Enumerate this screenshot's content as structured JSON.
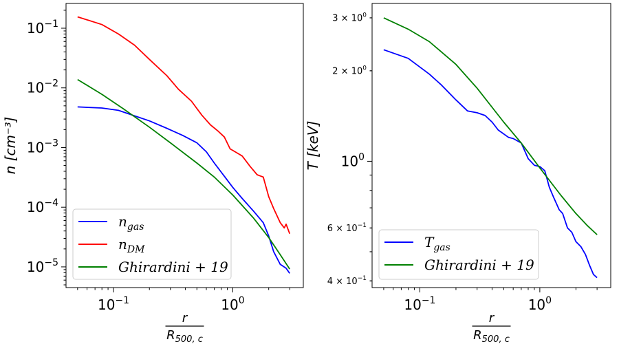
{
  "chart_data": [
    {
      "type": "line",
      "xscale": "log",
      "yscale": "log",
      "xlim": [
        0.04,
        3.9
      ],
      "ylim": [
        4.5e-06,
        0.26
      ],
      "ylabel": "n [cm⁻³]",
      "xlabel_num": "r",
      "xlabel_den": "R",
      "xlabel_den_sub": "500, c",
      "xticks": [
        {
          "value": 0.1,
          "base": "10",
          "exp": "−1"
        },
        {
          "value": 1,
          "base": "10",
          "exp": "0"
        }
      ],
      "yticks": [
        {
          "value": 0.1,
          "base": "10",
          "exp": "−1"
        },
        {
          "value": 0.01,
          "base": "10",
          "exp": "−2"
        },
        {
          "value": 0.001,
          "base": "10",
          "exp": "−3"
        },
        {
          "value": 0.0001,
          "base": "10",
          "exp": "−4"
        },
        {
          "value": 1e-05,
          "base": "10",
          "exp": "−5"
        }
      ],
      "legend_position": "lower-left",
      "series": [
        {
          "name": "n_gas",
          "label_main": "n",
          "label_sub": "gas",
          "color": "#0000ff",
          "x": [
            0.05,
            0.08,
            0.11,
            0.15,
            0.2,
            0.28,
            0.38,
            0.5,
            0.6,
            0.7,
            0.85,
            1.0,
            1.2,
            1.5,
            1.8,
            2.0,
            2.2,
            2.5,
            2.8,
            3.0
          ],
          "y": [
            0.0048,
            0.0046,
            0.0042,
            0.0034,
            0.0028,
            0.0021,
            0.0016,
            0.0012,
            0.00085,
            0.00055,
            0.00033,
            0.000215,
            0.00014,
            8.5e-05,
            5.5e-05,
            3.3e-05,
            1.8e-05,
            1.1e-05,
            9.5e-06,
            7.8e-06
          ]
        },
        {
          "name": "n_DM",
          "label_main": "n",
          "label_sub": "DM",
          "color": "#ff0000",
          "x": [
            0.05,
            0.08,
            0.11,
            0.15,
            0.2,
            0.28,
            0.35,
            0.45,
            0.55,
            0.65,
            0.75,
            0.85,
            0.95,
            1.1,
            1.2,
            1.4,
            1.6,
            1.8,
            2.0,
            2.2,
            2.5,
            2.7,
            2.8,
            3.0
          ],
          "y": [
            0.155,
            0.115,
            0.08,
            0.052,
            0.03,
            0.016,
            0.0095,
            0.006,
            0.0035,
            0.0024,
            0.0019,
            0.0015,
            0.00095,
            0.0008,
            0.00072,
            0.00048,
            0.00035,
            0.00032,
            0.00015,
            9.5e-05,
            5.5e-05,
            4.5e-05,
            5.2e-05,
            3.6e-05
          ]
        },
        {
          "name": "Ghirardini+19",
          "label_main": "Ghirardini + 19",
          "label_sub": "",
          "color": "#008000",
          "x": [
            0.05,
            0.08,
            0.12,
            0.2,
            0.3,
            0.5,
            0.7,
            1.0,
            1.5,
            2.0,
            2.5,
            3.0
          ],
          "y": [
            0.0138,
            0.0078,
            0.0045,
            0.0022,
            0.0012,
            0.00055,
            0.00032,
            0.00016,
            6.5e-05,
            3.1e-05,
            1.6e-05,
            9.2e-06
          ]
        }
      ]
    },
    {
      "type": "line",
      "xscale": "log",
      "yscale": "log",
      "xlim": [
        0.04,
        3.9
      ],
      "ylim": [
        0.38,
        3.35
      ],
      "ylabel": "T [keV]",
      "xlabel_num": "r",
      "xlabel_den": "R",
      "xlabel_den_sub": "500, c",
      "xticks": [
        {
          "value": 0.1,
          "base": "10",
          "exp": "−1"
        },
        {
          "value": 1,
          "base": "10",
          "exp": "0"
        }
      ],
      "yticks": [
        {
          "value": 3,
          "base": "3 × 10",
          "exp": "0",
          "size": "small"
        },
        {
          "value": 2,
          "base": "2 × 10",
          "exp": "0",
          "size": "small"
        },
        {
          "value": 1,
          "base": "10",
          "exp": "0",
          "size": "large"
        },
        {
          "value": 0.6,
          "base": "6 × 10",
          "exp": "−1",
          "size": "small"
        },
        {
          "value": 0.4,
          "base": "4 × 10",
          "exp": "−1",
          "size": "small"
        }
      ],
      "legend_position": "lower-left",
      "series": [
        {
          "name": "T_gas",
          "label_main": "T",
          "label_sub": "gas",
          "color": "#0000ff",
          "x": [
            0.05,
            0.08,
            0.12,
            0.15,
            0.2,
            0.25,
            0.3,
            0.35,
            0.4,
            0.45,
            0.55,
            0.6,
            0.7,
            0.8,
            0.9,
            1.0,
            1.1,
            1.2,
            1.3,
            1.45,
            1.55,
            1.7,
            1.85,
            2.0,
            2.2,
            2.4,
            2.6,
            2.8,
            3.0
          ],
          "y": [
            2.35,
            2.2,
            1.95,
            1.8,
            1.6,
            1.47,
            1.45,
            1.42,
            1.35,
            1.27,
            1.2,
            1.19,
            1.15,
            1.02,
            0.97,
            0.96,
            0.93,
            0.82,
            0.76,
            0.69,
            0.67,
            0.6,
            0.58,
            0.54,
            0.52,
            0.49,
            0.45,
            0.42,
            0.41
          ]
        },
        {
          "name": "Ghirardini+19",
          "label_main": "Ghirardini + 19",
          "label_sub": "",
          "color": "#008000",
          "x": [
            0.05,
            0.08,
            0.12,
            0.2,
            0.3,
            0.5,
            0.7,
            1.0,
            1.5,
            2.0,
            2.5,
            3.0
          ],
          "y": [
            3.0,
            2.75,
            2.5,
            2.1,
            1.75,
            1.35,
            1.15,
            0.95,
            0.77,
            0.67,
            0.61,
            0.57
          ]
        }
      ]
    }
  ]
}
